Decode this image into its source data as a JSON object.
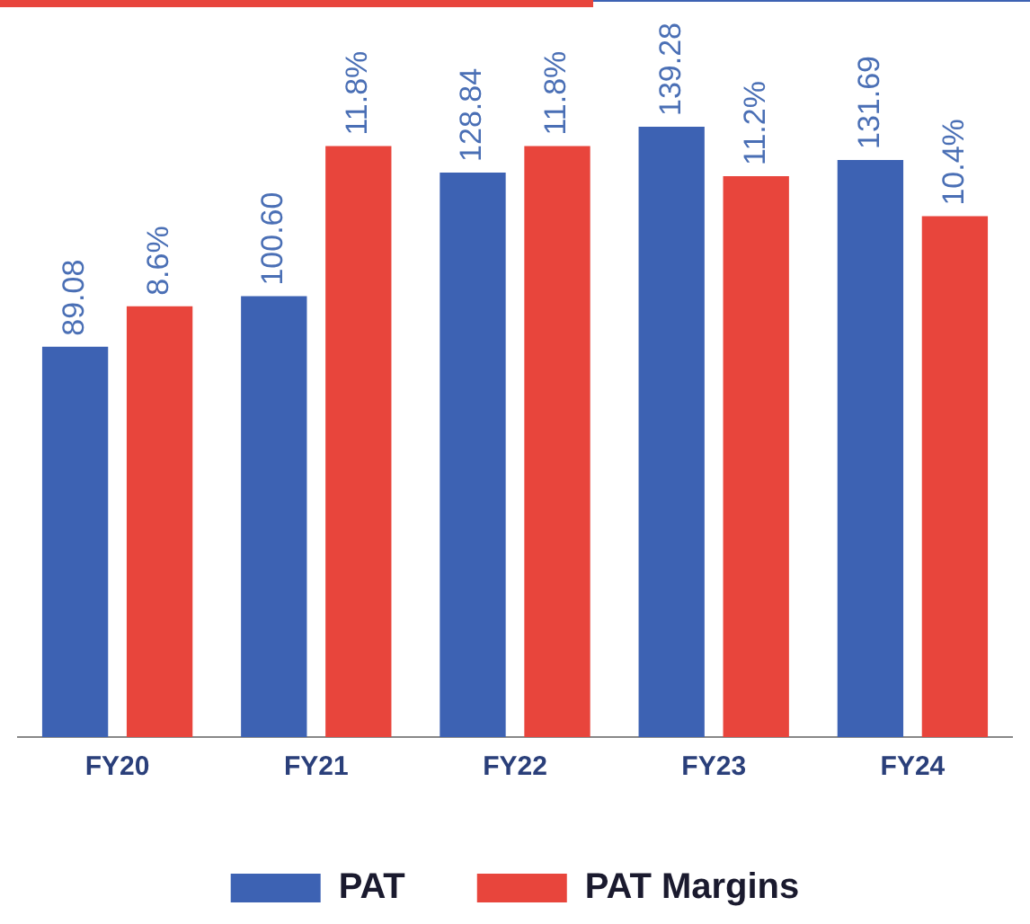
{
  "chart_data": {
    "type": "bar",
    "categories": [
      "FY20",
      "FY21",
      "FY22",
      "FY23",
      "FY24"
    ],
    "series": [
      {
        "name": "PAT",
        "color": "#3d62b3",
        "values": [
          89.08,
          100.6,
          128.84,
          139.28,
          131.69
        ],
        "value_labels": [
          "89.08",
          "100.60",
          "128.84",
          "139.28",
          "131.69"
        ]
      },
      {
        "name": "PAT Margins",
        "color": "#e8453c",
        "axis": "y2",
        "values": [
          8.6,
          11.8,
          11.8,
          11.2,
          10.4
        ],
        "value_labels": [
          "8.6%",
          "11.8%",
          "11.8%",
          "11.2%",
          "10.4%"
        ]
      }
    ],
    "legend": "bottom",
    "grid": false,
    "tick_labels": "x"
  }
}
